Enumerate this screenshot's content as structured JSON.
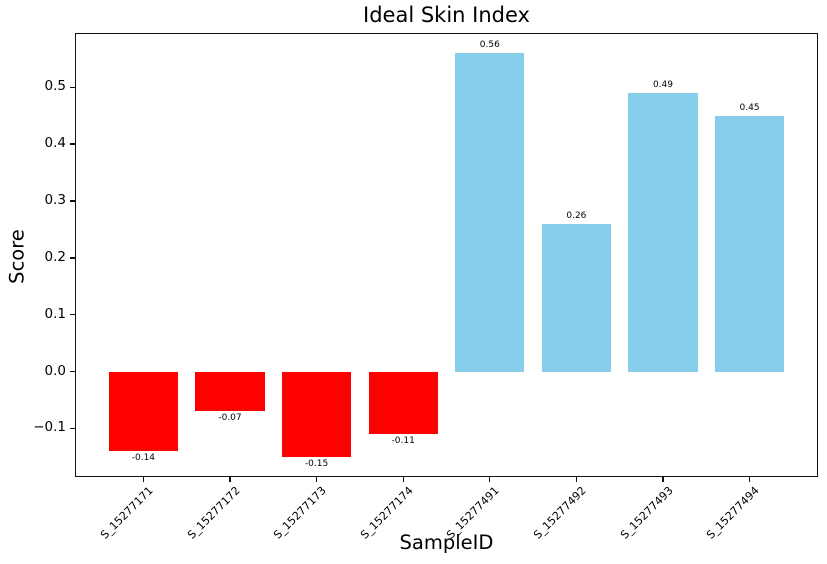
{
  "chart_data": {
    "type": "bar",
    "title": "Ideal Skin Index",
    "xlabel": "SampleID",
    "ylabel": "Score",
    "categories": [
      "S_15277171",
      "S_15277172",
      "S_15277173",
      "S_15277174",
      "S_15277491",
      "S_15277492",
      "S_15277493",
      "S_15277494"
    ],
    "values": [
      -0.14,
      -0.07,
      -0.15,
      -0.11,
      0.56,
      0.26,
      0.49,
      0.45
    ],
    "bar_labels": [
      "-0.14",
      "-0.07",
      "-0.15",
      "-0.11",
      "0.56",
      "0.26",
      "0.49",
      "0.45"
    ],
    "bar_colors": [
      "#ff0000",
      "#ff0000",
      "#ff0000",
      "#ff0000",
      "#87ceeb",
      "#87ceeb",
      "#87ceeb",
      "#87ceeb"
    ],
    "negative_color": "#ff0000",
    "positive_color": "#87ceeb",
    "yticks": [
      -0.1,
      0.0,
      0.1,
      0.2,
      0.3,
      0.4,
      0.5
    ],
    "ytick_labels": [
      "−0.1",
      "0.0",
      "0.1",
      "0.2",
      "0.3",
      "0.4",
      "0.5"
    ],
    "ylim": [
      -0.1855,
      0.5955
    ],
    "xlim": [
      -0.79,
      7.79
    ],
    "bar_width": 0.8,
    "grid": false,
    "legend": false
  }
}
